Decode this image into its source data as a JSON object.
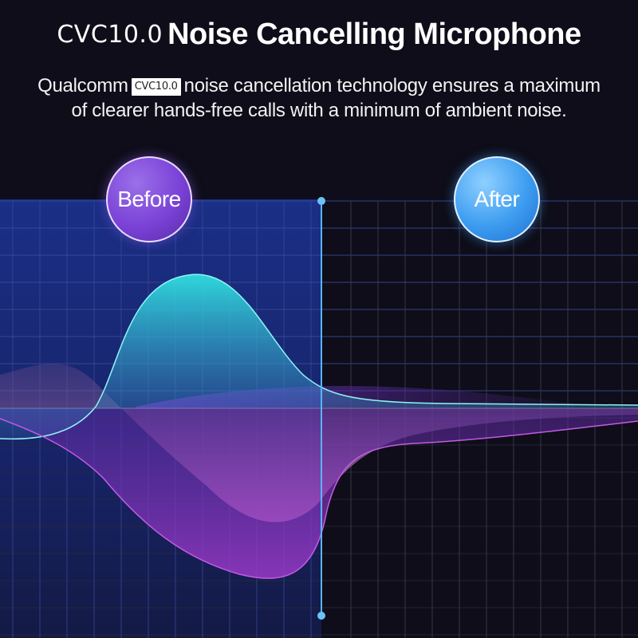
{
  "header": {
    "title_prefix": "CVC10.0",
    "title_main": "Noise Cancelling Microphone"
  },
  "description": {
    "lead": "Qualcomm",
    "badge": "CVC10.0",
    "rest_line1": "noise cancellation technology ensures a maximum",
    "line2": "of clearer hands-free calls with a minimum of ambient noise."
  },
  "comparison": {
    "before_label": "Before",
    "after_label": "After"
  },
  "colors": {
    "background": "#0e0d19",
    "before_panel": "#1a2a7a",
    "cyan_wave": "#2fd3d8",
    "purple_wave": "#b84fd8",
    "pink_wave": "#c07ab8",
    "divider": "#5ab4f0",
    "grid": "#3a3a48"
  },
  "icons": [
    "before-badge-circle",
    "after-badge-circle",
    "divider-handle-dot"
  ]
}
